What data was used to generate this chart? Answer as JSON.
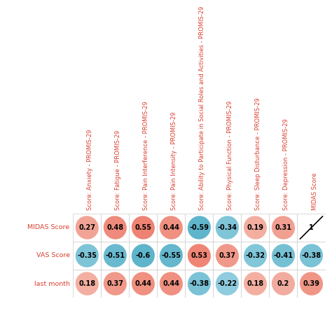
{
  "col_labels": [
    "Score: Anxiety - PROMIS-29",
    "Score: Fatigue - PROMIS-29",
    "Score: Pain Interference - PROMIS-29",
    "Score: Pain Intensity - PROMIS-29",
    "Score: Ability to Participate in Social Roles and Activities - PROMIS-29",
    "Score: Physical Function - PROMIS-29",
    "Score: Sleep Disturbance - PROMIS-29",
    "Score: Depression - PROMIS-29",
    "MIDAS Score"
  ],
  "row_labels": [
    "MIDAS Score",
    "VAS Score",
    "last month"
  ],
  "values": [
    [
      0.27,
      0.48,
      0.55,
      0.44,
      -0.59,
      -0.34,
      0.19,
      0.31,
      1.0
    ],
    [
      -0.35,
      -0.51,
      -0.6,
      -0.55,
      0.53,
      0.37,
      -0.32,
      -0.41,
      -0.38
    ],
    [
      0.18,
      0.37,
      0.44,
      0.44,
      -0.38,
      -0.22,
      0.18,
      0.2,
      0.39
    ]
  ],
  "diagonal_cell": [
    0,
    8
  ],
  "pos_strong": "#E84E3A",
  "pos_weak": "#F5C4B8",
  "neg_strong": "#2B9BB5",
  "neg_weak": "#AADAEA",
  "label_color": "#D94030",
  "background": "#FFFFFF",
  "grid_color": "#CCCCCC",
  "text_fontsize": 7,
  "label_fontsize": 6.8,
  "col_label_fontsize": 6.0
}
